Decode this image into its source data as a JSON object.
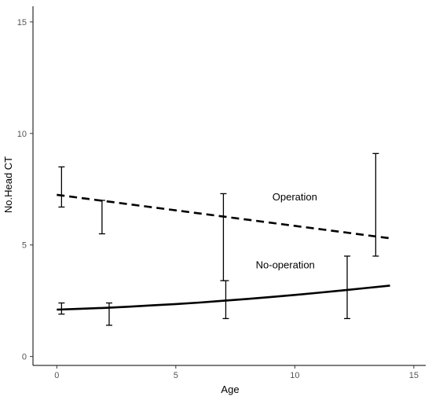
{
  "chart_data": {
    "type": "line",
    "title": "",
    "xlabel": "Age",
    "ylabel": "No.Head CT",
    "xlim": [
      -1,
      15.5
    ],
    "ylim": [
      -0.4,
      15.7
    ],
    "x_ticks": [
      0,
      5,
      10,
      15
    ],
    "y_ticks": [
      0,
      5,
      10,
      15
    ],
    "grid": false,
    "legend": "none",
    "series": [
      {
        "name": "Operation",
        "line_style": "dashed",
        "color": "#000000",
        "fit": {
          "x": [
            0,
            14
          ],
          "y": [
            7.25,
            5.3
          ]
        },
        "error_bars": [
          {
            "x": 0.2,
            "low": 6.7,
            "high": 8.5
          },
          {
            "x": 1.9,
            "low": 5.5,
            "high": 7.0
          },
          {
            "x": 7.0,
            "low": 3.4,
            "high": 7.3
          },
          {
            "x": 13.4,
            "low": 4.5,
            "high": 9.1
          }
        ]
      },
      {
        "name": "No-operation",
        "line_style": "solid",
        "color": "#000000",
        "fit": {
          "x": [
            0,
            1,
            2,
            3,
            4,
            5,
            6,
            7,
            8,
            9,
            10,
            11,
            12,
            13,
            14
          ],
          "y": [
            2.1,
            2.14,
            2.18,
            2.23,
            2.29,
            2.35,
            2.42,
            2.5,
            2.58,
            2.67,
            2.76,
            2.86,
            2.96,
            3.07,
            3.18
          ]
        },
        "error_bars": [
          {
            "x": 0.2,
            "low": 1.9,
            "high": 2.4
          },
          {
            "x": 2.2,
            "low": 1.4,
            "high": 2.4
          },
          {
            "x": 7.1,
            "low": 1.7,
            "high": 3.4
          },
          {
            "x": 12.2,
            "low": 1.7,
            "high": 4.5
          }
        ]
      }
    ],
    "annotations": [
      {
        "text": "Operation",
        "x": 10.0,
        "y": 7.0
      },
      {
        "text": "No-operation",
        "x": 9.6,
        "y": 3.95
      }
    ]
  }
}
